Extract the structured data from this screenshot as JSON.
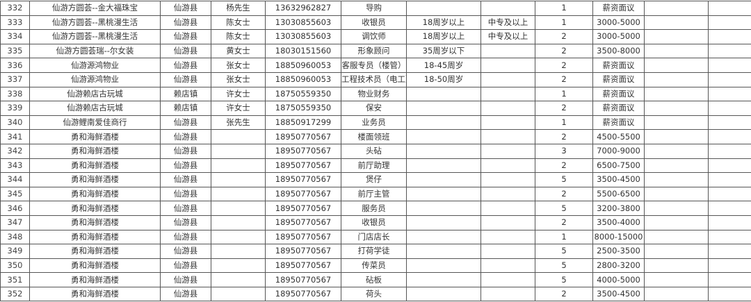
{
  "table": {
    "rows": [
      [
        "332",
        "仙游方圆荟--金大福珠宝",
        "仙游县",
        "杨先生",
        "13632962827",
        "导购",
        "",
        "",
        "1",
        "薪资面议",
        "",
        ""
      ],
      [
        "333",
        "仙游方圆荟--黑桃漫生活",
        "仙游县",
        "陈女士",
        "13030855603",
        "收银员",
        "18周岁以上",
        "中专及以上",
        "1",
        "3000-5000",
        "",
        ""
      ],
      [
        "334",
        "仙游方圆荟--黑桃漫生活",
        "仙游县",
        "陈女士",
        "13030855603",
        "调饮师",
        "18周岁以上",
        "中专及以上",
        "2",
        "3000-5000",
        "",
        ""
      ],
      [
        "335",
        "仙游方圆荟瑞--尔女装",
        "仙游县",
        "黄女士",
        "18030151560",
        "形象顾问",
        "35周岁以下",
        "",
        "2",
        "3500-8000",
        "",
        ""
      ],
      [
        "336",
        "仙游源鸿物业",
        "仙游县",
        "张女士",
        "18850960053",
        "客服专员（楼管）",
        "18-45周岁",
        "",
        "2",
        "薪资面议",
        "",
        ""
      ],
      [
        "337",
        "仙游源鸿物业",
        "仙游县",
        "张女士",
        "18850960053",
        "工程技术员（电工）",
        "18-50周岁",
        "",
        "2",
        "薪资面议",
        "",
        ""
      ],
      [
        "338",
        "仙游赖店古玩城",
        "赖店镇",
        "许女士",
        "18750559350",
        "物业财务",
        "",
        "",
        "1",
        "薪资面议",
        "",
        ""
      ],
      [
        "339",
        "仙游赖店古玩城",
        "赖店镇",
        "许女士",
        "18750559350",
        "保安",
        "",
        "",
        "2",
        "薪资面议",
        "",
        ""
      ],
      [
        "340",
        "仙游鲤南爱佳商行",
        "仙游县",
        "张先生",
        "18850917299",
        "业务员",
        "",
        "",
        "1",
        "薪资面议",
        "",
        ""
      ],
      [
        "341",
        "勇和海鲜酒楼",
        "仙游县",
        "",
        "18950770567",
        "楼面领班",
        "",
        "",
        "2",
        "4500-5500",
        "",
        ""
      ],
      [
        "342",
        "勇和海鲜酒楼",
        "仙游县",
        "",
        "18950770567",
        "头砧",
        "",
        "",
        "3",
        "7000-9000",
        "",
        ""
      ],
      [
        "343",
        "勇和海鲜酒楼",
        "仙游县",
        "",
        "18950770567",
        "前厅助理",
        "",
        "",
        "2",
        "6500-7500",
        "",
        ""
      ],
      [
        "344",
        "勇和海鲜酒楼",
        "仙游县",
        "",
        "18950770567",
        "煲仔",
        "",
        "",
        "5",
        "3500-4500",
        "",
        ""
      ],
      [
        "345",
        "勇和海鲜酒楼",
        "仙游县",
        "",
        "18950770567",
        "前厅主管",
        "",
        "",
        "2",
        "5500-6500",
        "",
        ""
      ],
      [
        "346",
        "勇和海鲜酒楼",
        "仙游县",
        "",
        "18950770567",
        "服务员",
        "",
        "",
        "5",
        "3200-3800",
        "",
        ""
      ],
      [
        "347",
        "勇和海鲜酒楼",
        "仙游县",
        "",
        "18950770567",
        "收银员",
        "",
        "",
        "2",
        "3500-4000",
        "",
        ""
      ],
      [
        "348",
        "勇和海鲜酒楼",
        "仙游县",
        "",
        "18950770567",
        "门店店长",
        "",
        "",
        "1",
        "8000-15000",
        "",
        ""
      ],
      [
        "349",
        "勇和海鲜酒楼",
        "仙游县",
        "",
        "18950770567",
        "打荷学徒",
        "",
        "",
        "5",
        "2500-3500",
        "",
        ""
      ],
      [
        "350",
        "勇和海鲜酒楼",
        "仙游县",
        "",
        "18950770567",
        "传菜员",
        "",
        "",
        "5",
        "2800-3200",
        "",
        ""
      ],
      [
        "351",
        "勇和海鲜酒楼",
        "仙游县",
        "",
        "18950770567",
        "砧板",
        "",
        "",
        "5",
        "4000-5000",
        "",
        ""
      ],
      [
        "352",
        "勇和海鲜酒楼",
        "仙游县",
        "",
        "18950770567",
        "荷头",
        "",
        "",
        "2",
        "3500-4500",
        "",
        ""
      ]
    ]
  }
}
